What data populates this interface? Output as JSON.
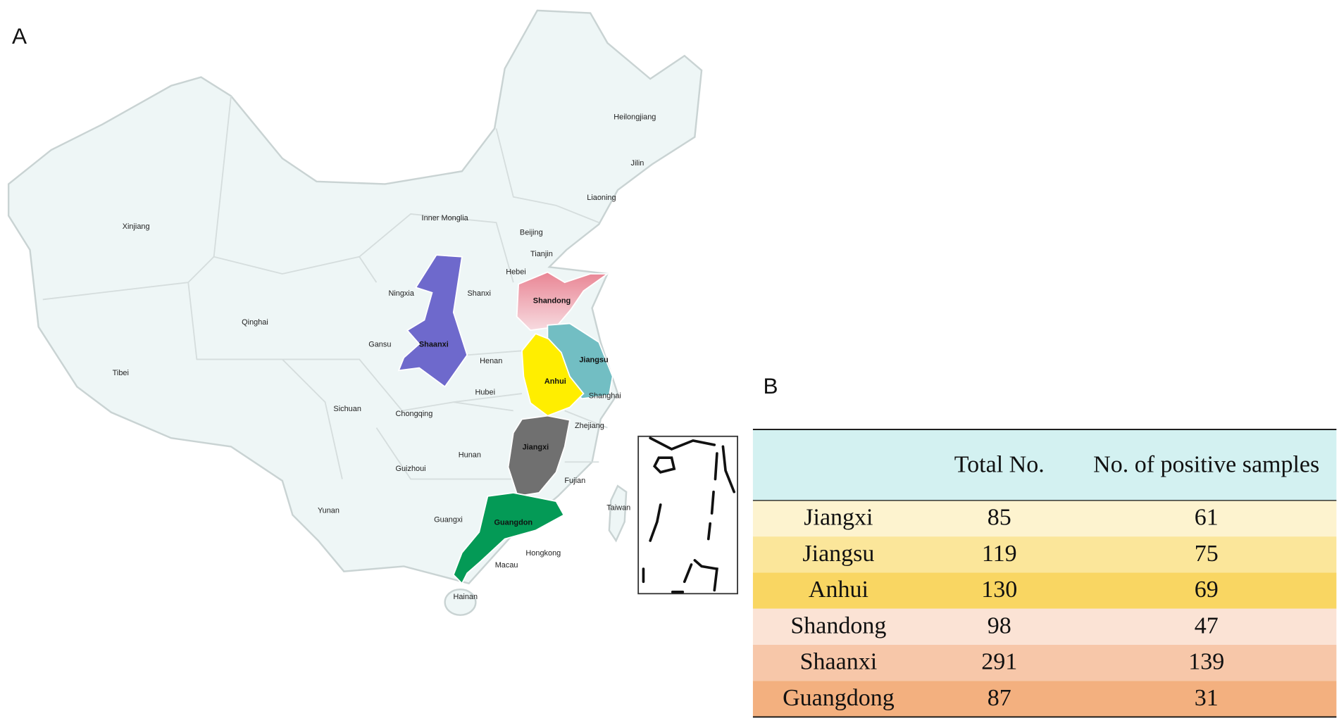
{
  "panel_a": {
    "label": "A",
    "regions": [
      "Heilongjiang",
      "Jilin",
      "Liaoning",
      "Xinjiang",
      "Inner Monglia",
      "Beijing",
      "Tianjin",
      "Hebei",
      "Ningxia",
      "Shanxi",
      "Qinghai",
      "Gansu",
      "Henan",
      "Tibei",
      "Hubei",
      "Shanghai",
      "Sichuan",
      "Chongqing",
      "Zhejiang",
      "Hunan",
      "Guizhoui",
      "Fujian",
      "Yunan",
      "Guangxi",
      "Taiwan",
      "Hongkong",
      "Macau",
      "Hainan"
    ],
    "highlighted": [
      {
        "label": "Shandong",
        "color": "#e98594"
      },
      {
        "label": "Shaanxi",
        "color": "#6e69cc"
      },
      {
        "label": "Jiangsu",
        "color": "#72bec3"
      },
      {
        "label": "Anhui",
        "color": "#ffee00"
      },
      {
        "label": "Jiangxi",
        "color": "#707070"
      },
      {
        "label": "Guangdon",
        "color": "#049a56"
      }
    ]
  },
  "panel_b": {
    "label": "B",
    "header_color": "#d3f1f1",
    "columns": [
      "Total No.",
      "No. of positive samples"
    ],
    "rows": [
      {
        "cells": [
          "Jiangxi",
          85,
          61
        ],
        "color": "#fdf3cf"
      },
      {
        "cells": [
          "Jiangsu",
          119,
          75
        ],
        "color": "#fbe69a"
      },
      {
        "cells": [
          "Anhui",
          130,
          69
        ],
        "color": "#f9d662"
      },
      {
        "cells": [
          "Shandong",
          98,
          47
        ],
        "color": "#fbe3d5"
      },
      {
        "cells": [
          "Shaanxi",
          291,
          139
        ],
        "color": "#f7c7a9"
      },
      {
        "cells": [
          "Guangdong",
          87,
          31
        ],
        "color": "#f3b07f"
      }
    ]
  }
}
